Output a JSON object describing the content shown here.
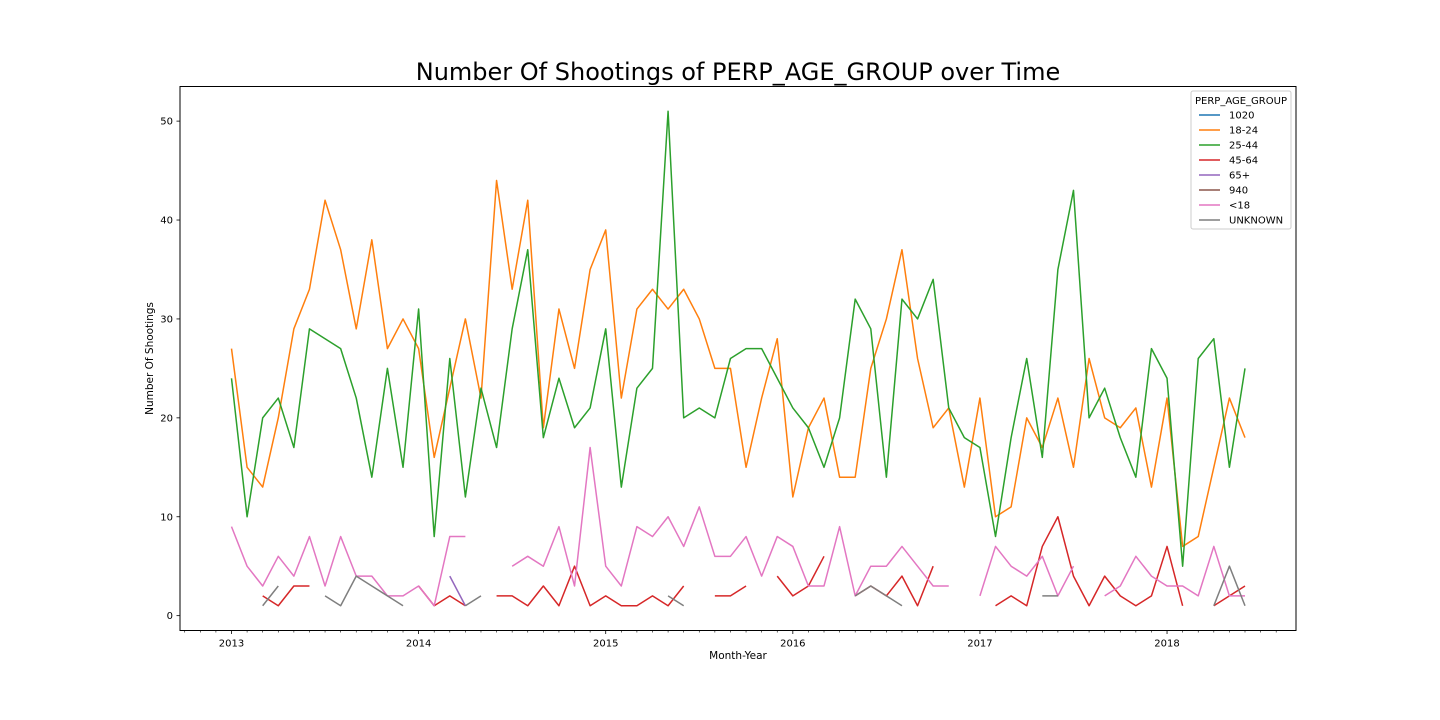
{
  "chart_data": {
    "type": "line",
    "title": "Number Of Shootings of PERP_AGE_GROUP over Time",
    "xlabel": "Month-Year",
    "ylabel": "Number Of Shootings",
    "x_start": "2013-01",
    "x_end": "2018-06",
    "x_ticks": [
      "2013",
      "2014",
      "2015",
      "2016",
      "2017",
      "2018"
    ],
    "ylim": [
      -1.5,
      53.5
    ],
    "y_ticks": [
      0,
      10,
      20,
      30,
      40,
      50
    ],
    "grid": false,
    "legend_title": "PERP_AGE_GROUP",
    "legend_position": "top-right",
    "series": [
      {
        "name": "1020",
        "color": "#1f77b4",
        "values": [
          null,
          null,
          null,
          null,
          null,
          null,
          null,
          null,
          null,
          null,
          null,
          null,
          null,
          null,
          null,
          null,
          null,
          null,
          null,
          null,
          null,
          null,
          null,
          null,
          null,
          null,
          null,
          null,
          null,
          null,
          null,
          null,
          null,
          null,
          null,
          null,
          null,
          null,
          null,
          null,
          null,
          null,
          null,
          null,
          null,
          null,
          null,
          null,
          null,
          null,
          null,
          null,
          null,
          null,
          null,
          null,
          null,
          null,
          null,
          null,
          null,
          null,
          null,
          null,
          null,
          null
        ]
      },
      {
        "name": "18-24",
        "color": "#ff7f0e",
        "values": [
          27,
          15,
          13,
          20,
          29,
          33,
          42,
          37,
          29,
          38,
          27,
          30,
          27,
          16,
          23,
          30,
          22,
          44,
          33,
          42,
          19,
          31,
          25,
          35,
          39,
          22,
          31,
          33,
          31,
          33,
          30,
          25,
          25,
          15,
          22,
          28,
          12,
          19,
          22,
          14,
          14,
          25,
          30,
          37,
          26,
          19,
          21,
          13,
          22,
          10,
          11,
          20,
          17,
          22,
          15,
          26,
          20,
          19,
          21,
          13,
          22,
          7,
          8,
          15,
          22,
          18
        ]
      },
      {
        "name": "25-44",
        "color": "#2ca02c",
        "values": [
          24,
          10,
          20,
          22,
          17,
          29,
          28,
          27,
          22,
          14,
          25,
          15,
          31,
          8,
          26,
          12,
          23,
          17,
          29,
          37,
          18,
          24,
          19,
          21,
          29,
          13,
          23,
          25,
          51,
          20,
          21,
          20,
          26,
          27,
          27,
          24,
          21,
          19,
          15,
          20,
          32,
          29,
          14,
          32,
          30,
          34,
          21,
          18,
          17,
          8,
          18,
          26,
          16,
          35,
          43,
          20,
          23,
          18,
          14,
          27,
          24,
          5,
          26,
          28,
          15,
          25
        ]
      },
      {
        "name": "45-64",
        "color": "#d62728",
        "values": [
          null,
          null,
          2,
          1,
          3,
          3,
          null,
          null,
          null,
          null,
          null,
          null,
          3,
          1,
          2,
          1,
          null,
          2,
          2,
          1,
          3,
          1,
          5,
          1,
          2,
          1,
          1,
          2,
          1,
          3,
          null,
          2,
          2,
          3,
          null,
          4,
          2,
          3,
          6,
          null,
          2,
          3,
          2,
          4,
          1,
          5,
          null,
          null,
          null,
          1,
          2,
          1,
          7,
          10,
          4,
          1,
          4,
          2,
          1,
          2,
          7,
          1,
          null,
          1,
          2,
          3
        ]
      },
      {
        "name": "65+",
        "color": "#9467bd",
        "values": [
          null,
          null,
          null,
          null,
          null,
          null,
          null,
          null,
          null,
          null,
          null,
          null,
          null,
          null,
          4,
          1,
          null,
          null,
          null,
          null,
          null,
          null,
          null,
          null,
          null,
          null,
          null,
          null,
          null,
          null,
          null,
          null,
          null,
          null,
          null,
          null,
          null,
          null,
          null,
          null,
          null,
          null,
          null,
          null,
          null,
          null,
          null,
          null,
          null,
          null,
          null,
          null,
          null,
          null,
          null,
          null,
          null,
          null,
          null,
          null,
          null,
          null,
          null,
          null,
          null,
          null
        ]
      },
      {
        "name": "940",
        "color": "#8c564b",
        "values": [
          null,
          null,
          null,
          null,
          null,
          null,
          null,
          null,
          null,
          null,
          null,
          null,
          null,
          null,
          null,
          null,
          null,
          null,
          null,
          null,
          null,
          null,
          null,
          null,
          null,
          null,
          null,
          null,
          null,
          null,
          null,
          null,
          null,
          null,
          null,
          null,
          null,
          null,
          null,
          null,
          null,
          null,
          null,
          null,
          null,
          null,
          null,
          null,
          null,
          null,
          null,
          null,
          null,
          null,
          null,
          null,
          null,
          null,
          null,
          null,
          null,
          null,
          null,
          null,
          null,
          null
        ]
      },
      {
        "name": "<18",
        "color": "#e377c2",
        "values": [
          9,
          5,
          3,
          6,
          4,
          8,
          3,
          8,
          4,
          4,
          2,
          2,
          3,
          1,
          8,
          8,
          null,
          null,
          5,
          6,
          5,
          9,
          3,
          17,
          5,
          3,
          9,
          8,
          10,
          7,
          11,
          6,
          6,
          8,
          4,
          8,
          7,
          3,
          3,
          9,
          2,
          5,
          5,
          7,
          5,
          3,
          3,
          null,
          2,
          7,
          5,
          4,
          6,
          2,
          5,
          null,
          2,
          3,
          6,
          4,
          3,
          3,
          2,
          7,
          2,
          2
        ]
      },
      {
        "name": "UNKNOWN",
        "color": "#7f7f7f",
        "values": [
          null,
          null,
          1,
          3,
          null,
          null,
          2,
          1,
          4,
          3,
          2,
          1,
          null,
          null,
          null,
          1,
          2,
          null,
          null,
          null,
          null,
          null,
          null,
          null,
          null,
          null,
          null,
          null,
          2,
          1,
          null,
          null,
          null,
          null,
          null,
          null,
          null,
          null,
          null,
          null,
          2,
          3,
          2,
          1,
          null,
          null,
          null,
          null,
          null,
          null,
          null,
          null,
          2,
          2,
          null,
          null,
          null,
          null,
          null,
          null,
          null,
          null,
          null,
          1,
          5,
          1
        ]
      }
    ]
  }
}
